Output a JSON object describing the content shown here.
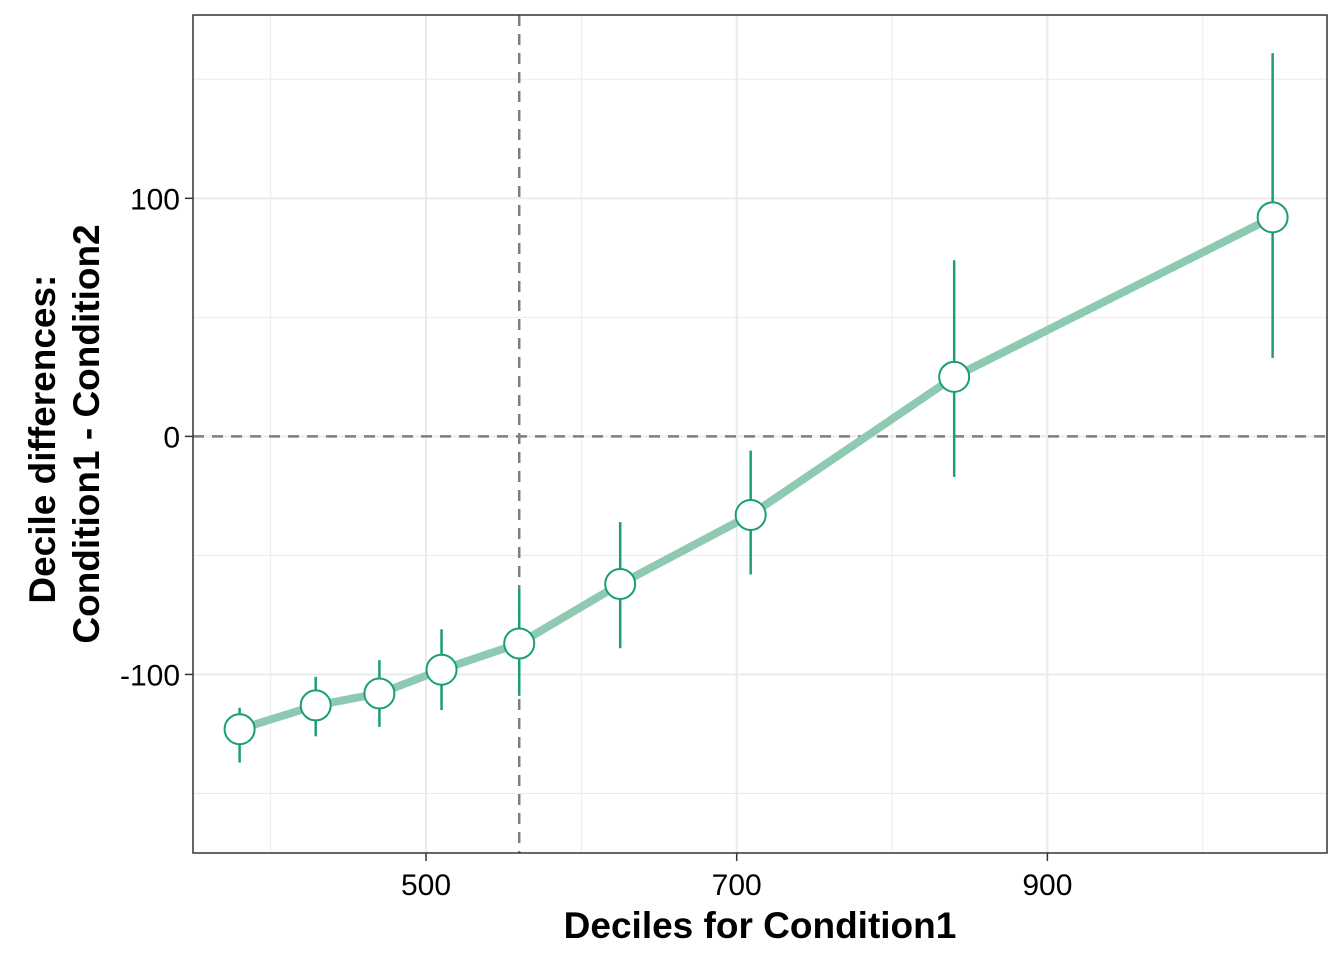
{
  "chart_data": {
    "type": "line",
    "xlabel": "Deciles for Condition1",
    "ylabel_line1": "Decile differences:",
    "ylabel_line2": "Condition1 - Condition2",
    "xlim": [
      350,
      1080
    ],
    "ylim": [
      -175,
      177
    ],
    "x_ticks": [
      500,
      700,
      900
    ],
    "x_tick_labels": [
      "500",
      "700",
      "900"
    ],
    "x_minor_ticks": [
      400,
      600,
      800,
      1000
    ],
    "y_ticks": [
      -100,
      0,
      100
    ],
    "y_tick_labels": [
      "-100",
      "0",
      "100"
    ],
    "y_minor_ticks": [
      -150,
      -50,
      50,
      150
    ],
    "reference_lines": {
      "vertical_x": 560,
      "horizontal_y": 0
    },
    "grid": true,
    "colors": {
      "line": "#8ecab1",
      "error_bar": "#1b9e77",
      "point_stroke": "#1b9e77",
      "point_fill": "#ffffff",
      "reference": "#7f7f7f",
      "grid": "#ebebeb"
    },
    "points": [
      {
        "x": 380,
        "y": -123,
        "lower": -137,
        "upper": -114
      },
      {
        "x": 429,
        "y": -113,
        "lower": -126,
        "upper": -101
      },
      {
        "x": 470,
        "y": -108,
        "lower": -122,
        "upper": -94
      },
      {
        "x": 510,
        "y": -98,
        "lower": -115,
        "upper": -81
      },
      {
        "x": 560,
        "y": -87,
        "lower": -109,
        "upper": -64
      },
      {
        "x": 625,
        "y": -62,
        "lower": -89,
        "upper": -36
      },
      {
        "x": 709,
        "y": -33,
        "lower": -58,
        "upper": -6
      },
      {
        "x": 840,
        "y": 25,
        "lower": -17,
        "upper": 74
      },
      {
        "x": 1045,
        "y": 92,
        "lower": 33,
        "upper": 161
      }
    ]
  }
}
